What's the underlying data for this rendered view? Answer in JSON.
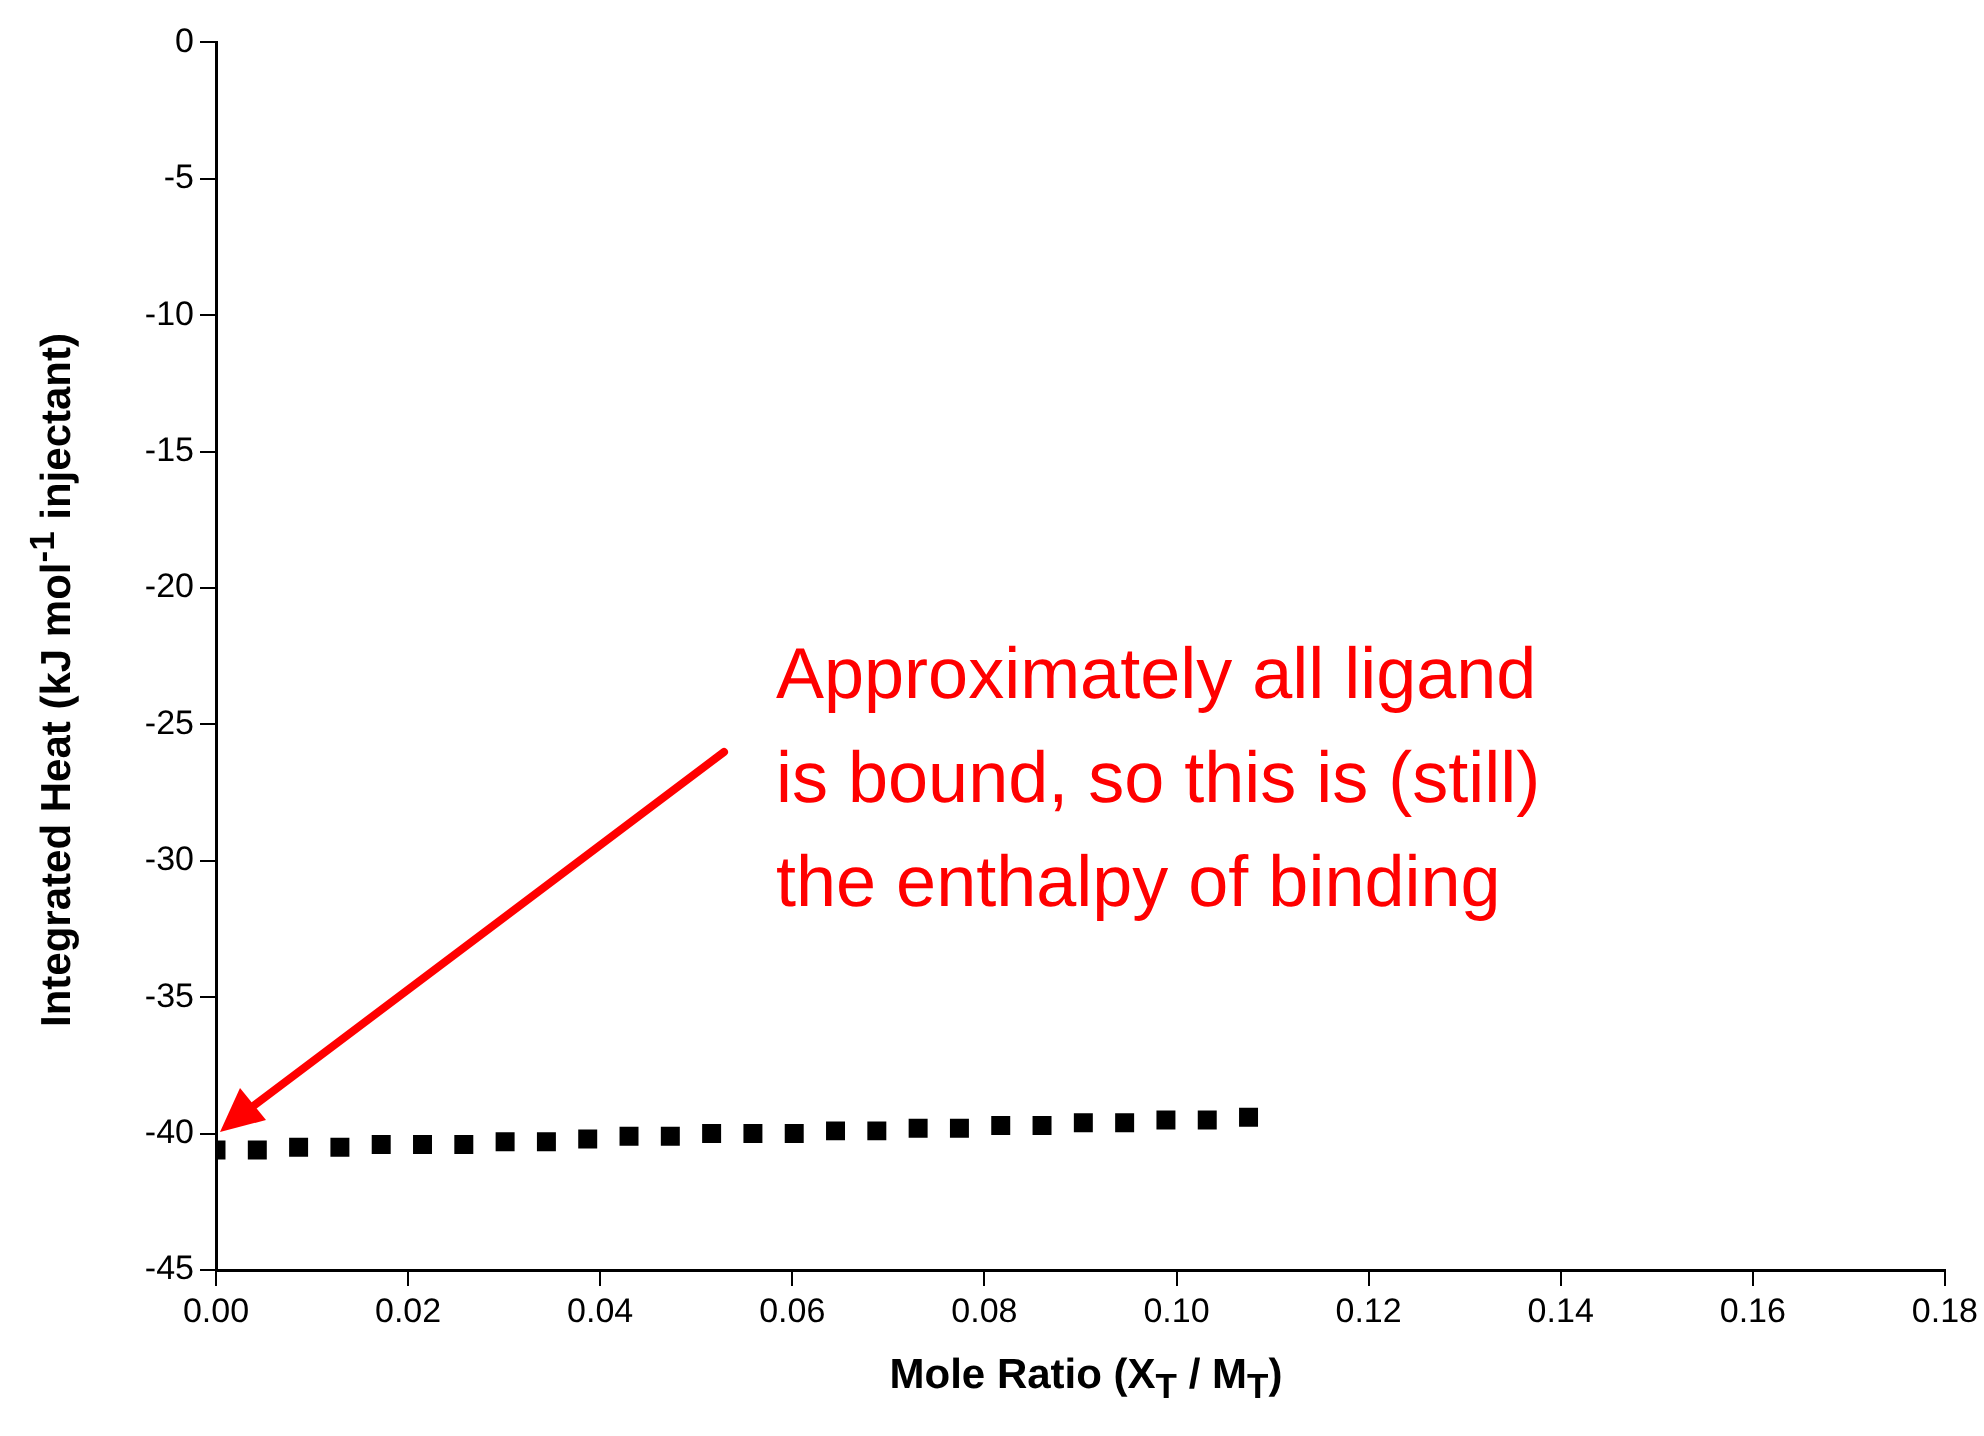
{
  "chart_data": {
    "type": "scatter",
    "xlabel": "Mole Ratio (X$_{T}$ / M$_{T}$)",
    "ylabel": "Integrated Heat (kJ mol$^{-1}$ injectant)",
    "xlim": [
      0,
      0.18
    ],
    "xticks": [
      {
        "value": 0,
        "label": "0.00"
      },
      {
        "value": 0.02,
        "label": "0.02"
      },
      {
        "value": 0.04,
        "label": "0.04"
      },
      {
        "value": 0.06,
        "label": "0.06"
      },
      {
        "value": 0.08,
        "label": "0.08"
      },
      {
        "value": 0.1,
        "label": "0.10"
      },
      {
        "value": 0.12,
        "label": "0.12"
      },
      {
        "value": 0.14,
        "label": "0.14"
      },
      {
        "value": 0.16,
        "label": "0.16"
      },
      {
        "value": 0.18,
        "label": "0.18"
      }
    ],
    "ylim": [
      -45,
      0
    ],
    "yticks": [
      -45,
      -40,
      -35,
      -30,
      -25,
      -20,
      -15,
      -10,
      -5,
      0
    ],
    "marker": "square",
    "series": [
      {
        "color": "#000000",
        "x": [
          0,
          0.0043,
          0.0086,
          0.0129,
          0.0172,
          0.0215,
          0.0258,
          0.0301,
          0.0344,
          0.0387,
          0.043,
          0.0473,
          0.0516,
          0.0559,
          0.0602,
          0.0645,
          0.0688,
          0.0731,
          0.0774,
          0.0817,
          0.086,
          0.0903,
          0.0946,
          0.0989,
          0.1032,
          0.1075
        ],
        "values": [
          -40.6,
          -40.6,
          -40.5,
          -40.5,
          -40.4,
          -40.4,
          -40.4,
          -40.3,
          -40.3,
          -40.2,
          -40.1,
          -40.1,
          -40.0,
          -40.0,
          -40.0,
          -39.9,
          -39.9,
          -39.8,
          -39.8,
          -39.7,
          -39.7,
          -39.6,
          -39.6,
          -39.5,
          -39.5,
          -39.4
        ]
      }
    ],
    "annotations": [
      "Approximately all ligand\nis bound, so this is (still)\nthe enthalpy of binding"
    ]
  }
}
